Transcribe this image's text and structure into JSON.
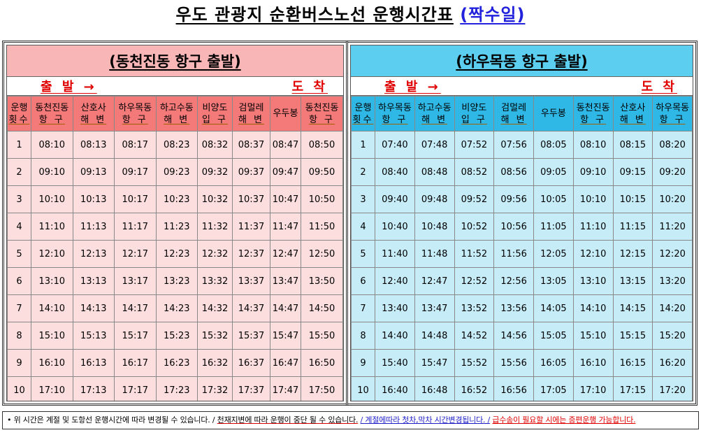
{
  "title": {
    "main": "우도 관광지 순환버스노선 운행시간표",
    "sub": "(짝수일)"
  },
  "panels": [
    {
      "heading": "(동천진동 항구 출발)",
      "depart": "출 발 →",
      "arrive": "도 착",
      "headers": [
        [
          "운행",
          "횟수"
        ],
        [
          "동천진동",
          "항 구"
        ],
        [
          "산호사",
          "해 변"
        ],
        [
          "하우목동",
          "항 구"
        ],
        [
          "하고수동",
          "해 변"
        ],
        [
          "비양도",
          "입 구"
        ],
        [
          "검멀레",
          "해 변"
        ],
        [
          "우두봉",
          ""
        ],
        [
          "동천진동",
          "항 구"
        ]
      ],
      "rows": [
        [
          "1",
          "08:10",
          "08:13",
          "08:17",
          "08:23",
          "08:32",
          "08:37",
          "08:47",
          "08:50"
        ],
        [
          "2",
          "09:10",
          "09:13",
          "09:17",
          "09:23",
          "09:32",
          "09:37",
          "09:47",
          "09:50"
        ],
        [
          "3",
          "10:10",
          "10:13",
          "10:17",
          "10:23",
          "10:32",
          "10:37",
          "10:47",
          "10:50"
        ],
        [
          "4",
          "11:10",
          "11:13",
          "11:17",
          "11:23",
          "11:32",
          "11:37",
          "11:47",
          "11:50"
        ],
        [
          "5",
          "12:10",
          "12:13",
          "12:17",
          "12:23",
          "12:32",
          "12:37",
          "12:47",
          "12:50"
        ],
        [
          "6",
          "13:10",
          "13:13",
          "13:17",
          "13:23",
          "13:32",
          "13:37",
          "13:47",
          "13:50"
        ],
        [
          "7",
          "14:10",
          "14:13",
          "14:17",
          "14:23",
          "14:32",
          "14:37",
          "14:47",
          "14:50"
        ],
        [
          "8",
          "15:10",
          "15:13",
          "15:17",
          "15:23",
          "15:32",
          "15:37",
          "15:47",
          "15:50"
        ],
        [
          "9",
          "16:10",
          "16:13",
          "16:17",
          "16:23",
          "16:32",
          "16:37",
          "16:47",
          "16:50"
        ],
        [
          "10",
          "17:10",
          "17:13",
          "17:17",
          "17:23",
          "17:32",
          "17:37",
          "17:47",
          "17:50"
        ]
      ]
    },
    {
      "heading": "(하우목동 항구 출발)",
      "depart": "출 발 →",
      "arrive": "도 착",
      "headers": [
        [
          "운행",
          "횟수"
        ],
        [
          "하우목동",
          "항 구"
        ],
        [
          "하고수동",
          "해 변"
        ],
        [
          "비양도",
          "입 구"
        ],
        [
          "검멀레",
          "해 변"
        ],
        [
          "우두봉",
          ""
        ],
        [
          "동천진동",
          "항 구"
        ],
        [
          "산호사",
          "해 변"
        ],
        [
          "하우목동",
          "항 구"
        ]
      ],
      "rows": [
        [
          "1",
          "07:40",
          "07:48",
          "07:52",
          "07:56",
          "08:05",
          "08:10",
          "08:15",
          "08:20"
        ],
        [
          "2",
          "08:40",
          "08:48",
          "08:52",
          "08:56",
          "09:05",
          "09:10",
          "09:15",
          "09:20"
        ],
        [
          "3",
          "09:40",
          "09:48",
          "09:52",
          "09:56",
          "10:05",
          "10:10",
          "10:15",
          "10:20"
        ],
        [
          "4",
          "10:40",
          "10:48",
          "10:52",
          "10:56",
          "11:05",
          "11:10",
          "11:15",
          "11:20"
        ],
        [
          "5",
          "11:40",
          "11:48",
          "11:52",
          "11:56",
          "12:05",
          "12:10",
          "12:15",
          "12:20"
        ],
        [
          "6",
          "12:40",
          "12:47",
          "12:52",
          "12:56",
          "13:05",
          "13:10",
          "13:15",
          "13:20"
        ],
        [
          "7",
          "13:40",
          "13:47",
          "13:52",
          "13:56",
          "14:05",
          "14:10",
          "14:15",
          "14:20"
        ],
        [
          "8",
          "14:40",
          "14:48",
          "14:52",
          "14:56",
          "15:05",
          "15:10",
          "15:15",
          "15:20"
        ],
        [
          "9",
          "15:40",
          "15:47",
          "15:52",
          "15:56",
          "16:05",
          "16:10",
          "16:15",
          "16:20"
        ],
        [
          "10",
          "16:40",
          "16:48",
          "16:52",
          "16:56",
          "17:05",
          "17:10",
          "17:15",
          "17:20"
        ]
      ]
    }
  ],
  "notice": {
    "part1": "• 위 시간은 계절 및 도항선 운행시간에 따라 변경될 수 있습니다. /",
    "part2": "천재지변에 따라 운행이 중단 될 수 있습니다.",
    "part3": "/ 계절에따라 첫차,막차 시간변경됩니다. /",
    "part4": "급수송이 필요할 시에는 증편운행 가능합니다."
  },
  "colors": {
    "left_heading": "#f8b6b6",
    "left_header": "#f47a7a",
    "left_cell": "#fcdede",
    "right_heading": "#5ccff0",
    "right_header": "#2fb8e6",
    "right_cell": "#c6ecf8",
    "accent_red": "#e00000",
    "accent_blue": "#2222dd"
  }
}
